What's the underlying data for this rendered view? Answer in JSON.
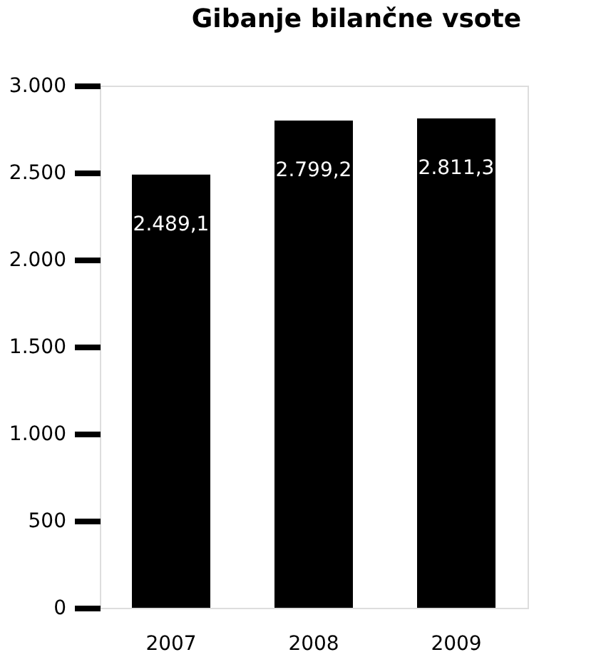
{
  "chart_data": {
    "type": "bar",
    "title": "Gibanje bilančne vsote",
    "categories": [
      "2007",
      "2008",
      "2009"
    ],
    "values": [
      2489.1,
      2799.2,
      2811.3
    ],
    "value_labels": [
      "2.489,1",
      "2.799,2",
      "2.811,3"
    ],
    "color": "#000000",
    "ylim": [
      0,
      3000
    ],
    "yticks": [
      {
        "value": 0,
        "label": "0"
      },
      {
        "value": 500,
        "label": "500"
      },
      {
        "value": 1000,
        "label": "1.000"
      },
      {
        "value": 1500,
        "label": "1.500"
      },
      {
        "value": 2000,
        "label": "2.000"
      },
      {
        "value": 2500,
        "label": "2.500"
      },
      {
        "value": 3000,
        "label": "3.000"
      }
    ],
    "grid": false
  }
}
